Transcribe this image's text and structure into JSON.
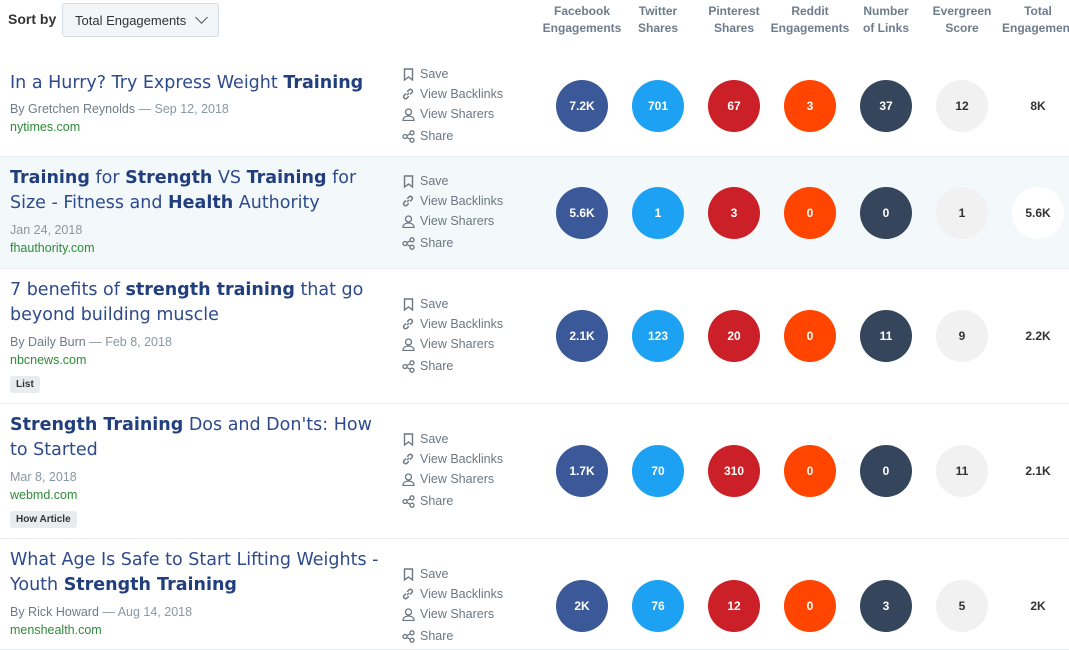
{
  "sort": {
    "label": "Sort by",
    "value": "Total Engagements"
  },
  "columns": [
    {
      "line1": "Facebook",
      "line2": "Engagements"
    },
    {
      "line1": "Twitter",
      "line2": "Shares"
    },
    {
      "line1": "Pinterest",
      "line2": "Shares"
    },
    {
      "line1": "Reddit",
      "line2": "Engagements"
    },
    {
      "line1": "Number",
      "line2": "of Links"
    },
    {
      "line1": "Evergreen",
      "line2": "Score"
    },
    {
      "line1": "Total",
      "line2": "Engagement"
    }
  ],
  "actions": {
    "save": "Save",
    "backlinks": "View Backlinks",
    "sharers": "View Sharers",
    "share": "Share"
  },
  "articles": [
    {
      "title_parts": [
        {
          "text": "In a Hurry? Try Express Weight ",
          "bold": false
        },
        {
          "text": "Training",
          "bold": true
        }
      ],
      "author": "By Gretchen Reynolds",
      "date": "Sep 12, 2018",
      "domain": "nytimes.com",
      "tag": "",
      "metrics": {
        "facebook": "7.2K",
        "twitter": "701",
        "pinterest": "67",
        "reddit": "3",
        "links": "37",
        "evergreen": "12",
        "total": "8K"
      }
    },
    {
      "title_parts": [
        {
          "text": "Training",
          "bold": true
        },
        {
          "text": " for ",
          "bold": false
        },
        {
          "text": "Strength",
          "bold": true
        },
        {
          "text": " VS ",
          "bold": false
        },
        {
          "text": "Training",
          "bold": true
        },
        {
          "text": " for Size - Fitness and ",
          "bold": false
        },
        {
          "text": "Health",
          "bold": true
        },
        {
          "text": " Authority",
          "bold": false
        }
      ],
      "author": "",
      "date": "Jan 24, 2018",
      "domain": "fhauthority.com",
      "tag": "",
      "metrics": {
        "facebook": "5.6K",
        "twitter": "1",
        "pinterest": "3",
        "reddit": "0",
        "links": "0",
        "evergreen": "1",
        "total": "5.6K"
      }
    },
    {
      "title_parts": [
        {
          "text": "7 benefits of ",
          "bold": false
        },
        {
          "text": "strength training",
          "bold": true
        },
        {
          "text": " that go beyond building muscle",
          "bold": false
        }
      ],
      "author": "By Daily Burn",
      "date": "Feb 8, 2018",
      "domain": "nbcnews.com",
      "tag": "List",
      "metrics": {
        "facebook": "2.1K",
        "twitter": "123",
        "pinterest": "20",
        "reddit": "0",
        "links": "11",
        "evergreen": "9",
        "total": "2.2K"
      }
    },
    {
      "title_parts": [
        {
          "text": "Strength Training",
          "bold": true
        },
        {
          "text": " Dos and Don'ts: How to Started",
          "bold": false
        }
      ],
      "author": "",
      "date": "Mar 8, 2018",
      "domain": "webmd.com",
      "tag": "How Article",
      "metrics": {
        "facebook": "1.7K",
        "twitter": "70",
        "pinterest": "310",
        "reddit": "0",
        "links": "0",
        "evergreen": "11",
        "total": "2.1K"
      }
    },
    {
      "title_parts": [
        {
          "text": "What Age Is Safe to Start Lifting Weights - Youth ",
          "bold": false
        },
        {
          "text": "Strength Training",
          "bold": true
        }
      ],
      "author": "By Rick Howard",
      "date": "Aug 14, 2018",
      "domain": "menshealth.com",
      "tag": "",
      "metrics": {
        "facebook": "2K",
        "twitter": "76",
        "pinterest": "12",
        "reddit": "0",
        "links": "3",
        "evergreen": "5",
        "total": "2K"
      }
    }
  ],
  "colors": {
    "facebook": "#3b5998",
    "twitter": "#1da1f2",
    "pinterest": "#cb2027",
    "reddit": "#ff4500",
    "links": "#35465c",
    "evergreen": "#f1f1f1",
    "title": "#2d4a8c",
    "domain": "#2f8a3a"
  },
  "icons": {
    "save": "bookmark-icon",
    "backlinks": "link-icon",
    "sharers": "user-icon",
    "share": "share-icon",
    "sort": "chevron-down-icon"
  }
}
